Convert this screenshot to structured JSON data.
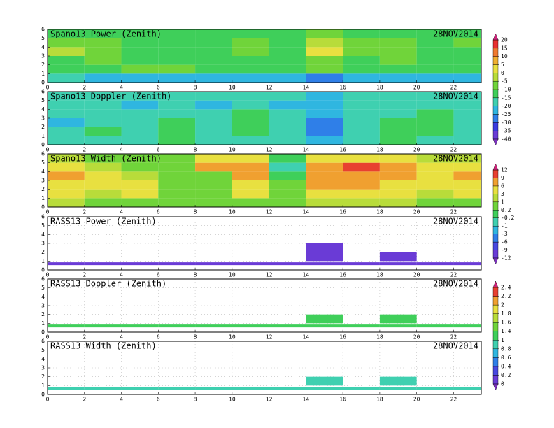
{
  "chart_data": [
    {
      "type": "heatmap",
      "title": "Spano13 Power (Zenith)",
      "date": "28NOV2014",
      "x_edges": [
        0,
        2,
        4,
        6,
        8,
        10,
        12,
        14,
        16,
        18,
        20,
        22,
        23.5
      ],
      "y_edges": [
        0,
        1,
        2,
        3,
        4,
        5,
        6
      ],
      "xlim": [
        0,
        23.5
      ],
      "ylim": [
        0,
        6
      ],
      "xticks": [
        0,
        2,
        4,
        6,
        8,
        10,
        12,
        14,
        16,
        18,
        20,
        22
      ],
      "yticks": [
        0,
        1,
        2,
        3,
        4,
        5,
        6
      ],
      "grid": false,
      "z": [
        [
          -20,
          -25,
          -25,
          -25,
          -25,
          -25,
          -25,
          -30,
          -25,
          -25,
          -25,
          -25
        ],
        [
          -15,
          -15,
          -10,
          -10,
          -15,
          -15,
          -15,
          -10,
          -15,
          -15,
          -15,
          -15
        ],
        [
          -15,
          -10,
          -15,
          -15,
          -15,
          -15,
          -15,
          -10,
          -15,
          -10,
          -15,
          -15
        ],
        [
          -5,
          -10,
          -15,
          -15,
          -15,
          -10,
          -15,
          0,
          -10,
          -10,
          -15,
          -15
        ],
        [
          -10,
          -10,
          -15,
          -15,
          -15,
          -10,
          -15,
          -5,
          -10,
          -10,
          -15,
          -10
        ],
        [
          -15,
          -15,
          -15,
          -15,
          -15,
          -15,
          -15,
          -10,
          -15,
          -15,
          -15,
          -15
        ]
      ],
      "colorbar": {
        "ticks": [
          -40,
          -35,
          -30,
          -25,
          -20,
          -15,
          -10,
          -5,
          0,
          5,
          10,
          15,
          20
        ],
        "colors": [
          "#7b2fbf",
          "#6a3bd6",
          "#3b3be0",
          "#2f7fe8",
          "#2fb6e0",
          "#3fd0b0",
          "#3fcf5a",
          "#70d43a",
          "#b8dc3a",
          "#e8e040",
          "#f0b030",
          "#f07a30",
          "#e83030",
          "#d0207a"
        ]
      }
    },
    {
      "type": "heatmap",
      "title": "Spano13 Doppler (Zenith)",
      "date": "28NOV2014",
      "x_edges": [
        0,
        2,
        4,
        6,
        8,
        10,
        12,
        14,
        16,
        18,
        20,
        22,
        23.5
      ],
      "y_edges": [
        0,
        1,
        2,
        3,
        4,
        5,
        6
      ],
      "xlim": [
        0,
        23.5
      ],
      "ylim": [
        0,
        6
      ],
      "xticks": [
        0,
        2,
        4,
        6,
        8,
        10,
        12,
        14,
        16,
        18,
        20,
        22
      ],
      "yticks": [
        0,
        1,
        2,
        3,
        4,
        5,
        6
      ],
      "grid": false,
      "z": [
        [
          -20,
          -20,
          -20,
          -15,
          -20,
          -20,
          -20,
          -25,
          -20,
          -15,
          -20,
          -20
        ],
        [
          -20,
          -15,
          -20,
          -15,
          -20,
          -15,
          -20,
          -30,
          -20,
          -15,
          -15,
          -20
        ],
        [
          -25,
          -20,
          -20,
          -15,
          -20,
          -15,
          -20,
          -30,
          -20,
          -15,
          -15,
          -20
        ],
        [
          -20,
          -20,
          -20,
          -20,
          -20,
          -15,
          -20,
          -25,
          -20,
          -20,
          -15,
          -20
        ],
        [
          -20,
          -20,
          -25,
          -20,
          -25,
          -20,
          -25,
          -25,
          -20,
          -20,
          -20,
          -20
        ],
        [
          -20,
          -20,
          -20,
          -20,
          -20,
          -20,
          -20,
          -25,
          -20,
          -20,
          -20,
          -20
        ]
      ]
    },
    {
      "type": "heatmap",
      "title": "Spano13 Width (Zenith)",
      "date": "28NOV2014",
      "x_edges": [
        0,
        2,
        4,
        6,
        8,
        10,
        12,
        14,
        16,
        18,
        20,
        22,
        23.5
      ],
      "y_edges": [
        0,
        1,
        2,
        3,
        4,
        5,
        6
      ],
      "xlim": [
        0,
        23.5
      ],
      "ylim": [
        0,
        6
      ],
      "xticks": [
        0,
        2,
        4,
        6,
        8,
        10,
        12,
        14,
        16,
        18,
        20,
        22
      ],
      "yticks": [
        0,
        1,
        2,
        3,
        4,
        5,
        6
      ],
      "grid": false,
      "z": [
        [
          1,
          0.5,
          0.5,
          0.5,
          0.5,
          0.5,
          0.5,
          1,
          1,
          1,
          0.5,
          0.5
        ],
        [
          3,
          1,
          3,
          0.5,
          0.5,
          3,
          0.5,
          3,
          3,
          3,
          1,
          3
        ],
        [
          3,
          3,
          3,
          0.5,
          0.5,
          3,
          0.5,
          6,
          6,
          3,
          3,
          3
        ],
        [
          6,
          3,
          1,
          0.5,
          0.5,
          6,
          0,
          6,
          6,
          6,
          3,
          6
        ],
        [
          3,
          1,
          0.5,
          0.5,
          6,
          6,
          -0.5,
          6,
          9,
          6,
          3,
          3
        ],
        [
          1,
          0.5,
          0.5,
          0.5,
          3,
          3,
          0,
          3,
          3,
          3,
          1,
          1
        ]
      ],
      "colorbar": {
        "ticks": [
          -12,
          -9,
          -6,
          -3,
          -1,
          -0.2,
          0.2,
          1,
          3,
          6,
          9,
          12
        ],
        "colors": [
          "#7b2fbf",
          "#6a3bd6",
          "#4848e0",
          "#2f7fe8",
          "#2fb6e0",
          "#3fd0b0",
          "#3fcf5a",
          "#70d43a",
          "#b8dc3a",
          "#e8e040",
          "#f0a030",
          "#e84030",
          "#d0207a"
        ]
      }
    },
    {
      "type": "heatmap",
      "title": "RASS13 Power (Zenith)",
      "date": "28NOV2014",
      "x_edges": [
        0,
        2,
        4,
        6,
        8,
        10,
        12,
        14,
        16,
        18,
        20,
        22,
        23.5
      ],
      "y_edges": [
        0,
        1,
        2,
        3,
        4,
        5,
        6
      ],
      "xlim": [
        0,
        23.5
      ],
      "ylim": [
        0,
        6
      ],
      "xticks": [
        0,
        2,
        4,
        6,
        8,
        10,
        12,
        14,
        16,
        18,
        20,
        22
      ],
      "yticks": [
        0,
        1,
        2,
        3,
        4,
        5,
        6
      ],
      "grid": true,
      "z": [
        [
          -10.5,
          -10.5,
          -10.5,
          -10.5,
          -10.5,
          -10.5,
          -10.5,
          -10.5,
          -10.5,
          -10.5,
          -10.5,
          -10.5
        ],
        [
          null,
          null,
          null,
          null,
          null,
          null,
          null,
          -10,
          null,
          -10,
          null,
          null
        ],
        [
          null,
          null,
          null,
          null,
          null,
          null,
          null,
          -10,
          null,
          null,
          null,
          null
        ],
        [
          null,
          null,
          null,
          null,
          null,
          null,
          null,
          null,
          null,
          null,
          null,
          null
        ],
        [
          null,
          null,
          null,
          null,
          null,
          null,
          null,
          null,
          null,
          null,
          null,
          null
        ],
        [
          null,
          null,
          null,
          null,
          null,
          null,
          null,
          null,
          null,
          null,
          null,
          null
        ]
      ]
    },
    {
      "type": "heatmap",
      "title": "RASS13 Doppler (Zenith)",
      "date": "28NOV2014",
      "x_edges": [
        0,
        2,
        4,
        6,
        8,
        10,
        12,
        14,
        16,
        18,
        20,
        22,
        23.5
      ],
      "y_edges": [
        0,
        1,
        2,
        3,
        4,
        5,
        6
      ],
      "xlim": [
        0,
        23.5
      ],
      "ylim": [
        0,
        6
      ],
      "xticks": [
        0,
        2,
        4,
        6,
        8,
        10,
        12,
        14,
        16,
        18,
        20,
        22
      ],
      "yticks": [
        0,
        1,
        2,
        3,
        4,
        5,
        6
      ],
      "grid": true,
      "z": [
        [
          1.1,
          1.1,
          1.1,
          1.1,
          1.1,
          1.1,
          1.1,
          1.1,
          1.1,
          1.1,
          1.1,
          1.1
        ],
        [
          null,
          null,
          null,
          null,
          null,
          null,
          null,
          1.1,
          null,
          1.1,
          null,
          null
        ],
        [
          null,
          null,
          null,
          null,
          null,
          null,
          null,
          null,
          null,
          null,
          null,
          null
        ],
        [
          null,
          null,
          null,
          null,
          null,
          null,
          null,
          null,
          null,
          null,
          null,
          null
        ],
        [
          null,
          null,
          null,
          null,
          null,
          null,
          null,
          null,
          null,
          null,
          null,
          null
        ],
        [
          null,
          null,
          null,
          null,
          null,
          null,
          null,
          null,
          null,
          null,
          null,
          null
        ]
      ],
      "colorbar": {
        "ticks": [
          0,
          0.2,
          0.4,
          0.6,
          0.8,
          1,
          1.4,
          1.6,
          1.8,
          2,
          2.2,
          2.4
        ],
        "colors": [
          "#7b2fbf",
          "#6a3bd6",
          "#4848e0",
          "#2f7fe8",
          "#2fb6e0",
          "#3fd0b0",
          "#3fcf5a",
          "#70d43a",
          "#b8dc3a",
          "#e8e040",
          "#f0a030",
          "#e84030",
          "#d0207a"
        ]
      }
    },
    {
      "type": "heatmap",
      "title": "RASS13 Width (Zenith)",
      "date": "28NOV2014",
      "x_edges": [
        0,
        2,
        4,
        6,
        8,
        10,
        12,
        14,
        16,
        18,
        20,
        22,
        23.5
      ],
      "y_edges": [
        0,
        1,
        2,
        3,
        4,
        5,
        6
      ],
      "xlim": [
        0,
        23.5
      ],
      "ylim": [
        0,
        6
      ],
      "xticks": [
        0,
        2,
        4,
        6,
        8,
        10,
        12,
        14,
        16,
        18,
        20,
        22
      ],
      "yticks": [
        0,
        1,
        2,
        3,
        4,
        5,
        6
      ],
      "grid": true,
      "z": [
        [
          0.9,
          0.9,
          0.9,
          0.9,
          0.9,
          0.9,
          0.9,
          0.9,
          0.9,
          0.9,
          0.9,
          0.9
        ],
        [
          null,
          null,
          null,
          null,
          null,
          null,
          null,
          0.9,
          null,
          0.9,
          null,
          null
        ],
        [
          null,
          null,
          null,
          null,
          null,
          null,
          null,
          null,
          null,
          null,
          null,
          null
        ],
        [
          null,
          null,
          null,
          null,
          null,
          null,
          null,
          null,
          null,
          null,
          null,
          null
        ],
        [
          null,
          null,
          null,
          null,
          null,
          null,
          null,
          null,
          null,
          null,
          null,
          null
        ],
        [
          null,
          null,
          null,
          null,
          null,
          null,
          null,
          null,
          null,
          null,
          null,
          null
        ]
      ]
    }
  ]
}
